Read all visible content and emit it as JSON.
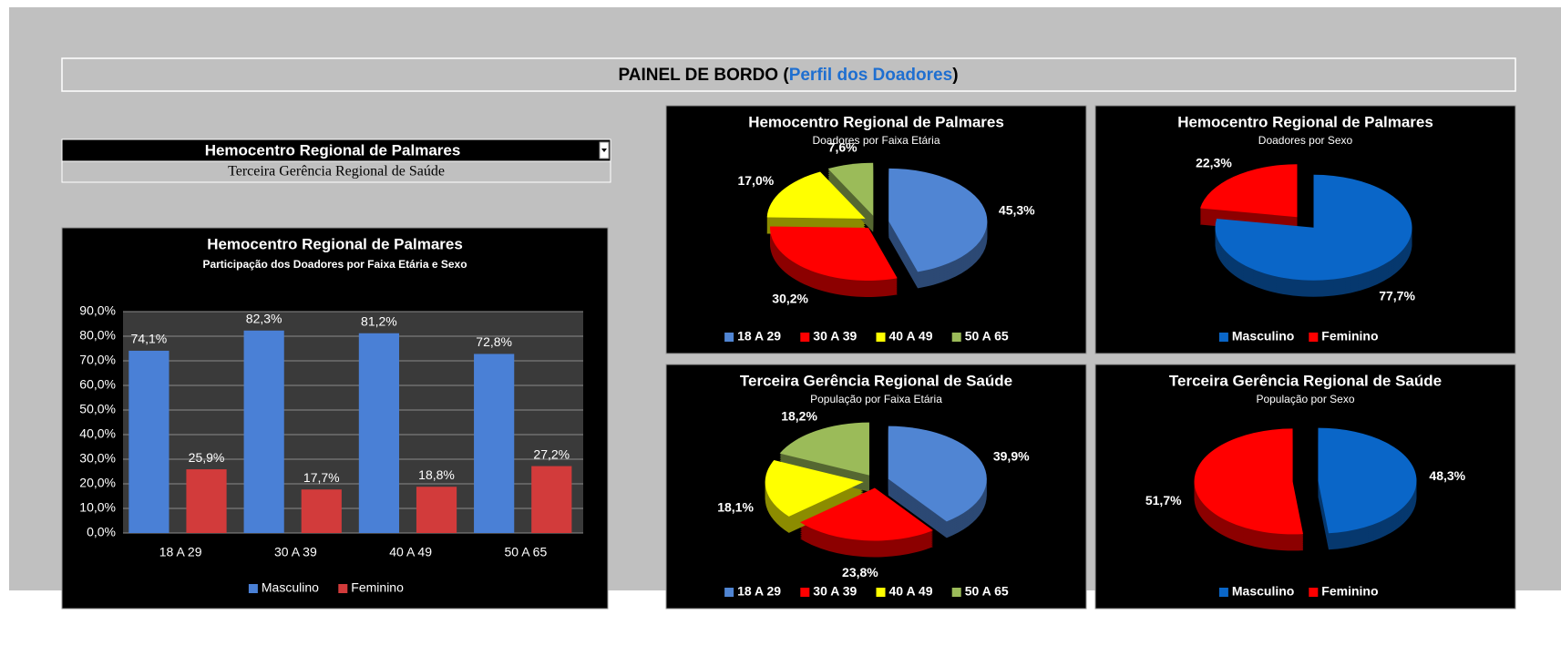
{
  "header": {
    "title": [
      "PAINEL DE BORDO (",
      "Perfil dos Doadores",
      ")"
    ]
  },
  "selector": {
    "value": "Hemocentro Regional de Palmares",
    "caption": "Terceira Gerência Regional de Saúde"
  },
  "chart_data": [
    {
      "type": "bar",
      "title": "Hemocentro Regional de Palmares",
      "subtitle": "Participação dos Doadores por Faixa Etária e Sexo",
      "categories": [
        "18 A 29",
        "30 A 39",
        "40 A 49",
        "50 A 65"
      ],
      "series": [
        {
          "name": "Masculino",
          "color": "#4a80d6",
          "values": [
            74.1,
            82.3,
            81.2,
            72.8
          ],
          "value_labels": [
            "74,1%",
            "82,3%",
            "81,2%",
            "72,8%"
          ]
        },
        {
          "name": "Feminino",
          "color": "#d23b3b",
          "values": [
            25.9,
            17.7,
            18.8,
            27.2
          ],
          "value_labels": [
            "25,9%",
            "17,7%",
            "18,8%",
            "27,2%"
          ]
        }
      ],
      "ylim": [
        0,
        90
      ],
      "yticks": [
        {
          "value": 0,
          "label": "0,0%"
        },
        {
          "value": 10,
          "label": "10,0%"
        },
        {
          "value": 20,
          "label": "20,0%"
        },
        {
          "value": 30,
          "label": "30,0%"
        },
        {
          "value": 40,
          "label": "40,0%"
        },
        {
          "value": 50,
          "label": "50,0%"
        },
        {
          "value": 60,
          "label": "60,0%"
        },
        {
          "value": 70,
          "label": "70,0%"
        },
        {
          "value": 80,
          "label": "80,0%"
        },
        {
          "value": 90,
          "label": "90,0%"
        }
      ],
      "grid": true,
      "legend": "bottom"
    },
    {
      "type": "pie",
      "title": "Hemocentro Regional de Palmares",
      "subtitle": "Doadores por Faixa Etária",
      "categories": [
        "18 A 29",
        "30 A 39",
        "40 A 49",
        "50 A 65"
      ],
      "values": [
        45.3,
        30.2,
        17.0,
        7.6
      ],
      "value_labels": [
        "45,3%",
        "30,2%",
        "17,0%",
        "7,6%"
      ],
      "colors": [
        "#5085d3",
        "#ff0000",
        "#ffff00",
        "#9bbb59"
      ],
      "legend": "bottom"
    },
    {
      "type": "pie",
      "title": "Hemocentro Regional de Palmares",
      "subtitle": "Doadores por Sexo",
      "categories": [
        "Masculino",
        "Feminino"
      ],
      "values": [
        77.7,
        22.3
      ],
      "value_labels": [
        "77,7%",
        "22,3%"
      ],
      "colors": [
        "#0a66c8",
        "#ff0000"
      ],
      "legend": "bottom"
    },
    {
      "type": "pie",
      "title": "Terceira Gerência Regional de Saúde",
      "subtitle": "População por Faixa Etária",
      "categories": [
        "18 A 29",
        "30 A 39",
        "40 A 49",
        "50 A 65"
      ],
      "values": [
        39.9,
        23.8,
        18.1,
        18.2
      ],
      "value_labels": [
        "39,9%",
        "23,8%",
        "18,1%",
        "18,2%"
      ],
      "colors": [
        "#5085d3",
        "#ff0000",
        "#ffff00",
        "#9bbb59"
      ],
      "legend": "bottom"
    },
    {
      "type": "pie",
      "title": "Terceira Gerência Regional de Saúde",
      "subtitle": "População por Sexo",
      "categories": [
        "Masculino",
        "Feminino"
      ],
      "values": [
        48.3,
        51.7
      ],
      "value_labels": [
        "48,3%",
        "51,7%"
      ],
      "colors": [
        "#0a66c8",
        "#ff0000"
      ],
      "legend": "bottom"
    }
  ]
}
